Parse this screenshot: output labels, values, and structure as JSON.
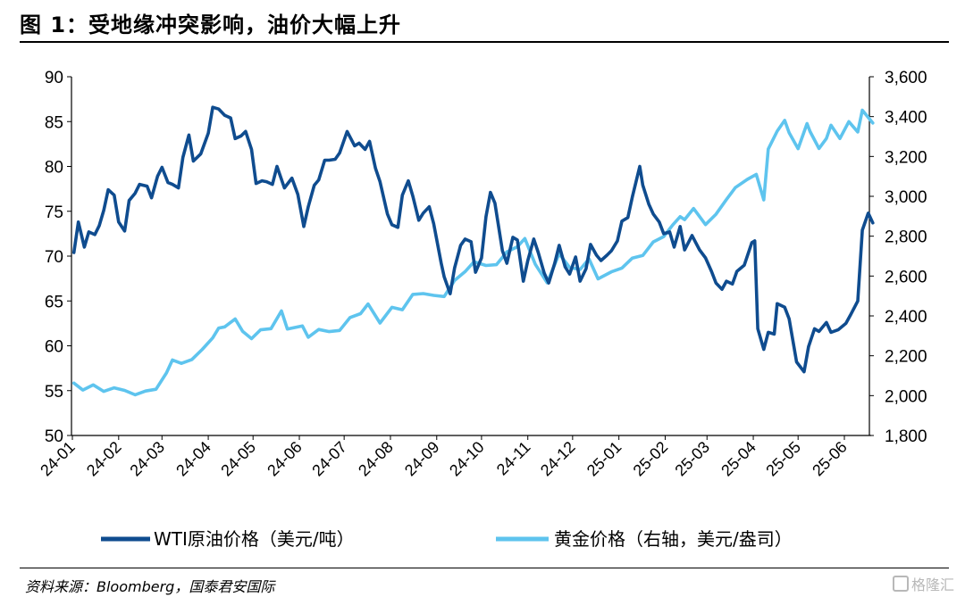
{
  "header": {
    "title": "图 1：受地缘冲突影响，油价大幅上升"
  },
  "footer": {
    "source": "资料来源：Bloomberg，国泰君安国际",
    "watermark": "格隆汇"
  },
  "colors": {
    "wti": "#0f4c8f",
    "gold": "#5ec4ee",
    "axis": "#000000"
  },
  "chart_data": {
    "type": "line",
    "title": "",
    "x_tick_labels": [
      "24-01",
      "24-02",
      "24-03",
      "24-04",
      "24-05",
      "24-06",
      "24-07",
      "24-08",
      "24-09",
      "24-10",
      "24-11",
      "24-12",
      "25-01",
      "25-02",
      "25-03",
      "25-04",
      "25-05",
      "25-06"
    ],
    "x_start": "2024-01-01",
    "x_end": "2025-06-20",
    "y_left": {
      "range": [
        50,
        90
      ],
      "ticks": [
        "50",
        "55",
        "60",
        "65",
        "70",
        "75",
        "80",
        "85",
        "90"
      ]
    },
    "y_right": {
      "range": [
        1800,
        3600
      ],
      "ticks": [
        "1,800",
        "2,000",
        "2,200",
        "2,400",
        "2,600",
        "2,800",
        "3,000",
        "3,200",
        "3,400",
        "3,600"
      ]
    },
    "grid": false,
    "legend_position": "bottom",
    "series": [
      {
        "name": "WTI原油价格（美元/吨）",
        "axis": "left",
        "points": [
          [
            "2024-01-02",
            70.4
          ],
          [
            "2024-01-05",
            73.8
          ],
          [
            "2024-01-09",
            71.0
          ],
          [
            "2024-01-12",
            72.7
          ],
          [
            "2024-01-16",
            72.4
          ],
          [
            "2024-01-19",
            73.4
          ],
          [
            "2024-01-22",
            75.1
          ],
          [
            "2024-01-25",
            77.4
          ],
          [
            "2024-01-29",
            76.8
          ],
          [
            "2024-02-01",
            73.8
          ],
          [
            "2024-02-05",
            72.8
          ],
          [
            "2024-02-08",
            76.2
          ],
          [
            "2024-02-12",
            77.0
          ],
          [
            "2024-02-15",
            78.0
          ],
          [
            "2024-02-20",
            77.8
          ],
          [
            "2024-02-23",
            76.5
          ],
          [
            "2024-02-27",
            78.9
          ],
          [
            "2024-03-01",
            79.9
          ],
          [
            "2024-03-05",
            78.2
          ],
          [
            "2024-03-08",
            78.0
          ],
          [
            "2024-03-12",
            77.6
          ],
          [
            "2024-03-15",
            81.0
          ],
          [
            "2024-03-19",
            83.5
          ],
          [
            "2024-03-22",
            80.6
          ],
          [
            "2024-03-27",
            81.4
          ],
          [
            "2024-04-01",
            83.7
          ],
          [
            "2024-04-04",
            86.6
          ],
          [
            "2024-04-08",
            86.4
          ],
          [
            "2024-04-12",
            85.7
          ],
          [
            "2024-04-16",
            85.4
          ],
          [
            "2024-04-19",
            83.1
          ],
          [
            "2024-04-23",
            83.4
          ],
          [
            "2024-04-26",
            83.9
          ],
          [
            "2024-04-30",
            81.9
          ],
          [
            "2024-05-03",
            78.1
          ],
          [
            "2024-05-07",
            78.4
          ],
          [
            "2024-05-10",
            78.3
          ],
          [
            "2024-05-14",
            78.0
          ],
          [
            "2024-05-17",
            80.0
          ],
          [
            "2024-05-22",
            77.6
          ],
          [
            "2024-05-27",
            78.7
          ],
          [
            "2024-05-31",
            76.9
          ],
          [
            "2024-06-04",
            73.3
          ],
          [
            "2024-06-07",
            75.5
          ],
          [
            "2024-06-11",
            77.9
          ],
          [
            "2024-06-14",
            78.5
          ],
          [
            "2024-06-18",
            80.7
          ],
          [
            "2024-06-21",
            80.7
          ],
          [
            "2024-06-25",
            80.8
          ],
          [
            "2024-06-28",
            81.5
          ],
          [
            "2024-07-03",
            83.9
          ],
          [
            "2024-07-08",
            82.3
          ],
          [
            "2024-07-11",
            82.6
          ],
          [
            "2024-07-15",
            81.9
          ],
          [
            "2024-07-18",
            82.8
          ],
          [
            "2024-07-22",
            79.8
          ],
          [
            "2024-07-25",
            78.3
          ],
          [
            "2024-07-30",
            74.7
          ],
          [
            "2024-08-02",
            73.5
          ],
          [
            "2024-08-06",
            73.2
          ],
          [
            "2024-08-09",
            76.8
          ],
          [
            "2024-08-13",
            78.4
          ],
          [
            "2024-08-16",
            76.7
          ],
          [
            "2024-08-20",
            74.0
          ],
          [
            "2024-08-23",
            74.8
          ],
          [
            "2024-08-27",
            75.5
          ],
          [
            "2024-08-30",
            73.6
          ],
          [
            "2024-09-04",
            69.2
          ],
          [
            "2024-09-06",
            67.7
          ],
          [
            "2024-09-10",
            65.8
          ],
          [
            "2024-09-13",
            68.7
          ],
          [
            "2024-09-17",
            71.2
          ],
          [
            "2024-09-20",
            71.9
          ],
          [
            "2024-09-24",
            71.6
          ],
          [
            "2024-09-27",
            68.2
          ],
          [
            "2024-10-01",
            69.8
          ],
          [
            "2024-10-04",
            74.4
          ],
          [
            "2024-10-07",
            77.1
          ],
          [
            "2024-10-10",
            75.9
          ],
          [
            "2024-10-15",
            70.6
          ],
          [
            "2024-10-18",
            69.2
          ],
          [
            "2024-10-22",
            72.1
          ],
          [
            "2024-10-25",
            71.8
          ],
          [
            "2024-10-29",
            67.2
          ],
          [
            "2024-11-01",
            69.5
          ],
          [
            "2024-11-05",
            71.9
          ],
          [
            "2024-11-08",
            70.4
          ],
          [
            "2024-11-12",
            68.1
          ],
          [
            "2024-11-15",
            67.0
          ],
          [
            "2024-11-19",
            69.2
          ],
          [
            "2024-11-22",
            71.2
          ],
          [
            "2024-11-26",
            68.8
          ],
          [
            "2024-11-29",
            68.0
          ],
          [
            "2024-12-03",
            69.9
          ],
          [
            "2024-12-06",
            67.2
          ],
          [
            "2024-12-10",
            68.6
          ],
          [
            "2024-12-13",
            71.3
          ],
          [
            "2024-12-17",
            70.1
          ],
          [
            "2024-12-20",
            69.5
          ],
          [
            "2024-12-24",
            70.1
          ],
          [
            "2024-12-27",
            70.6
          ],
          [
            "2024-12-31",
            71.7
          ],
          [
            "2025-01-03",
            73.9
          ],
          [
            "2025-01-07",
            74.3
          ],
          [
            "2025-01-10",
            76.6
          ],
          [
            "2025-01-15",
            80.0
          ],
          [
            "2025-01-17",
            77.9
          ],
          [
            "2025-01-21",
            75.8
          ],
          [
            "2025-01-24",
            74.7
          ],
          [
            "2025-01-28",
            73.8
          ],
          [
            "2025-01-31",
            72.5
          ],
          [
            "2025-02-04",
            72.7
          ],
          [
            "2025-02-07",
            71.0
          ],
          [
            "2025-02-11",
            73.3
          ],
          [
            "2025-02-14",
            70.7
          ],
          [
            "2025-02-19",
            72.3
          ],
          [
            "2025-02-24",
            70.7
          ],
          [
            "2025-02-28",
            69.8
          ],
          [
            "2025-03-04",
            68.3
          ],
          [
            "2025-03-07",
            67.0
          ],
          [
            "2025-03-11",
            66.3
          ],
          [
            "2025-03-14",
            67.2
          ],
          [
            "2025-03-18",
            66.9
          ],
          [
            "2025-03-21",
            68.3
          ],
          [
            "2025-03-26",
            69.0
          ],
          [
            "2025-03-31",
            71.5
          ],
          [
            "2025-04-02",
            71.7
          ],
          [
            "2025-04-04",
            61.9
          ],
          [
            "2025-04-08",
            59.6
          ],
          [
            "2025-04-11",
            61.5
          ],
          [
            "2025-04-15",
            61.3
          ],
          [
            "2025-04-17",
            64.7
          ],
          [
            "2025-04-22",
            64.3
          ],
          [
            "2025-04-25",
            63.0
          ],
          [
            "2025-04-30",
            58.2
          ],
          [
            "2025-05-05",
            57.1
          ],
          [
            "2025-05-08",
            59.9
          ],
          [
            "2025-05-12",
            61.9
          ],
          [
            "2025-05-15",
            61.6
          ],
          [
            "2025-05-20",
            62.6
          ],
          [
            "2025-05-23",
            61.5
          ],
          [
            "2025-05-28",
            61.8
          ],
          [
            "2025-06-02",
            62.5
          ],
          [
            "2025-06-05",
            63.4
          ],
          [
            "2025-06-10",
            65.0
          ],
          [
            "2025-06-13",
            72.9
          ],
          [
            "2025-06-17",
            74.8
          ],
          [
            "2025-06-20",
            73.7
          ]
        ]
      },
      {
        "name": "黄金价格（右轴，美元/盎司）",
        "axis": "right",
        "points": [
          [
            "2024-01-02",
            2063
          ],
          [
            "2024-01-08",
            2028
          ],
          [
            "2024-01-15",
            2054
          ],
          [
            "2024-01-22",
            2021
          ],
          [
            "2024-01-29",
            2039
          ],
          [
            "2024-02-05",
            2026
          ],
          [
            "2024-02-12",
            2004
          ],
          [
            "2024-02-19",
            2023
          ],
          [
            "2024-02-26",
            2032
          ],
          [
            "2024-03-04",
            2114
          ],
          [
            "2024-03-08",
            2179
          ],
          [
            "2024-03-14",
            2162
          ],
          [
            "2024-03-21",
            2181
          ],
          [
            "2024-03-28",
            2232
          ],
          [
            "2024-04-04",
            2290
          ],
          [
            "2024-04-08",
            2339
          ],
          [
            "2024-04-12",
            2345
          ],
          [
            "2024-04-19",
            2385
          ],
          [
            "2024-04-24",
            2323
          ],
          [
            "2024-04-30",
            2286
          ],
          [
            "2024-05-06",
            2330
          ],
          [
            "2024-05-13",
            2336
          ],
          [
            "2024-05-20",
            2425
          ],
          [
            "2024-05-24",
            2334
          ],
          [
            "2024-06-03",
            2350
          ],
          [
            "2024-06-07",
            2293
          ],
          [
            "2024-06-14",
            2332
          ],
          [
            "2024-06-21",
            2321
          ],
          [
            "2024-06-28",
            2327
          ],
          [
            "2024-07-05",
            2392
          ],
          [
            "2024-07-12",
            2411
          ],
          [
            "2024-07-17",
            2460
          ],
          [
            "2024-07-25",
            2364
          ],
          [
            "2024-08-02",
            2443
          ],
          [
            "2024-08-09",
            2431
          ],
          [
            "2024-08-16",
            2508
          ],
          [
            "2024-08-23",
            2512
          ],
          [
            "2024-08-30",
            2503
          ],
          [
            "2024-09-06",
            2497
          ],
          [
            "2024-09-13",
            2578
          ],
          [
            "2024-09-20",
            2622
          ],
          [
            "2024-09-26",
            2672
          ],
          [
            "2024-10-04",
            2653
          ],
          [
            "2024-10-11",
            2657
          ],
          [
            "2024-10-18",
            2721
          ],
          [
            "2024-10-25",
            2747
          ],
          [
            "2024-10-30",
            2788
          ],
          [
            "2024-11-06",
            2659
          ],
          [
            "2024-11-14",
            2566
          ],
          [
            "2024-11-22",
            2712
          ],
          [
            "2024-11-29",
            2643
          ],
          [
            "2024-12-06",
            2633
          ],
          [
            "2024-12-12",
            2686
          ],
          [
            "2024-12-18",
            2586
          ],
          [
            "2024-12-27",
            2621
          ],
          [
            "2025-01-03",
            2640
          ],
          [
            "2025-01-10",
            2690
          ],
          [
            "2025-01-17",
            2703
          ],
          [
            "2025-01-24",
            2771
          ],
          [
            "2025-01-31",
            2798
          ],
          [
            "2025-02-06",
            2856
          ],
          [
            "2025-02-11",
            2898
          ],
          [
            "2025-02-14",
            2883
          ],
          [
            "2025-02-20",
            2939
          ],
          [
            "2025-02-28",
            2858
          ],
          [
            "2025-03-07",
            2910
          ],
          [
            "2025-03-14",
            2984
          ],
          [
            "2025-03-20",
            3044
          ],
          [
            "2025-03-28",
            3085
          ],
          [
            "2025-04-03",
            3110
          ],
          [
            "2025-04-08",
            2982
          ],
          [
            "2025-04-11",
            3237
          ],
          [
            "2025-04-17",
            3327
          ],
          [
            "2025-04-22",
            3381
          ],
          [
            "2025-04-25",
            3319
          ],
          [
            "2025-05-01",
            3239
          ],
          [
            "2025-05-07",
            3365
          ],
          [
            "2025-05-09",
            3325
          ],
          [
            "2025-05-15",
            3240
          ],
          [
            "2025-05-20",
            3290
          ],
          [
            "2025-05-23",
            3357
          ],
          [
            "2025-05-29",
            3290
          ],
          [
            "2025-06-04",
            3375
          ],
          [
            "2025-06-10",
            3323
          ],
          [
            "2025-06-13",
            3432
          ],
          [
            "2025-06-20",
            3368
          ]
        ]
      }
    ]
  }
}
